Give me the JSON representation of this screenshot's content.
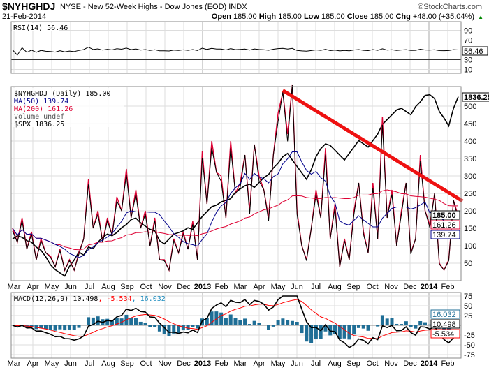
{
  "header": {
    "symbol": "$NYHGHDJ",
    "description": "NYSE - New 52-Week Highs - Dow Jones (EOD) INDX",
    "watermark": "©StockCharts.com",
    "date": "21-Feb-2014",
    "open_label": "Open",
    "open": "185.00",
    "high_label": "High",
    "high": "185.00",
    "low_label": "Low",
    "low": "185.00",
    "close_label": "Close",
    "close": "185.00",
    "chg_label": "Chg",
    "chg": "+48.00 (+35.04%)",
    "chg_arrow": "▲"
  },
  "colors": {
    "price": "#000000",
    "ma50": "#00008b",
    "ma200": "#dd0033",
    "macd_signal": "#ff0000",
    "macd_hist": "#1f6e96",
    "trendline": "#ee1111",
    "spx": "#000000"
  },
  "chart_data": [
    {
      "type": "line",
      "panel": "RSI",
      "legend": "RSI(14) 56.46",
      "yticks": [
        "90",
        "70",
        "30",
        "10"
      ],
      "ylim": [
        0,
        100
      ],
      "reference_lines": [
        70,
        50,
        30
      ],
      "last_value_tag": "56.46"
    },
    {
      "type": "line",
      "panel": "Price",
      "legend": [
        {
          "label": "$NYHGHDJ (Daily) 185.00",
          "color": "#000000"
        },
        {
          "label": "MA(50) 139.74",
          "color": "#00008b"
        },
        {
          "label": "MA(200) 161.26",
          "color": "#dd0033"
        },
        {
          "label": "Volume undef",
          "color": "#555555"
        },
        {
          "label": "$SPX 1836.25",
          "color": "#000000"
        }
      ],
      "ylim": [
        0,
        540
      ],
      "yticks": [
        "500",
        "450",
        "400",
        "350",
        "300",
        "250",
        "200",
        "150",
        "100",
        "50"
      ],
      "tags": {
        "spx": "1836.25",
        "close": "185.00",
        "ma200": "161.26",
        "ma50": "139.74"
      },
      "series_nyhghdj": [
        150,
        110,
        180,
        90,
        140,
        60,
        120,
        80,
        70,
        40,
        90,
        30,
        60,
        30,
        80,
        120,
        290,
        150,
        200,
        110,
        180,
        130,
        240,
        200,
        320,
        180,
        260,
        150,
        200,
        100,
        180,
        60,
        60,
        30,
        120,
        80,
        140,
        90,
        170,
        60,
        370,
        220,
        400,
        310,
        300,
        180,
        400,
        250,
        280,
        360,
        200,
        390,
        300,
        260,
        180,
        360,
        480,
        540,
        420,
        560,
        200,
        100,
        60,
        150,
        260,
        180,
        380,
        120,
        220,
        40,
        120,
        60,
        200,
        280,
        140,
        80,
        280,
        120,
        470,
        180,
        260,
        100,
        200,
        280,
        80,
        120,
        360,
        200,
        160,
        250,
        50,
        30,
        60,
        230,
        185
      ],
      "series_spx": [
        1395,
        1405,
        1400,
        1390,
        1385,
        1370,
        1360,
        1340,
        1315,
        1300,
        1290,
        1280,
        1310,
        1330,
        1355,
        1345,
        1370,
        1365,
        1385,
        1400,
        1410,
        1405,
        1415,
        1430,
        1440,
        1455,
        1460,
        1445,
        1435,
        1425,
        1420,
        1390,
        1380,
        1395,
        1410,
        1415,
        1420,
        1430,
        1425,
        1445,
        1465,
        1480,
        1495,
        1500,
        1510,
        1515,
        1520,
        1540,
        1550,
        1560,
        1565,
        1555,
        1570,
        1585,
        1595,
        1615,
        1630,
        1650,
        1660,
        1640,
        1620,
        1600,
        1580,
        1610,
        1650,
        1675,
        1690,
        1685,
        1670,
        1655,
        1640,
        1660,
        1680,
        1700,
        1690,
        1680,
        1700,
        1720,
        1750,
        1765,
        1780,
        1795,
        1800,
        1790,
        1780,
        1805,
        1820,
        1840,
        1842,
        1830,
        1790,
        1770,
        1745,
        1800,
        1836
      ],
      "spx_range": [
        1266,
        1850
      ],
      "annotation": {
        "type": "trendline",
        "from": {
          "index": 57,
          "value": 545
        },
        "to": {
          "index": 94,
          "value": 228
        }
      }
    },
    {
      "type": "bar+line",
      "panel": "MACD",
      "legend": "MACD(12,26,9)",
      "legend_values": {
        "macd": "10.498",
        "signal": "-5.534",
        "histogram": "16.032"
      },
      "ylim": [
        -80,
        80
      ],
      "yticks": [
        "75",
        "50",
        "25",
        "-25",
        "-50",
        "-75"
      ],
      "tags": {
        "macd": "10.498",
        "signal": "-5.534",
        "histogram": "16.032"
      }
    }
  ],
  "x_axis": {
    "months": [
      "Mar",
      "Apr",
      "May",
      "Jun",
      "Jul",
      "Aug",
      "Sep",
      "Oct",
      "Nov",
      "Dec",
      "2013",
      "Feb",
      "Mar",
      "Apr",
      "May",
      "Jun",
      "Jul",
      "Aug",
      "Sep",
      "Oct",
      "Nov",
      "Dec",
      "2014",
      "Feb"
    ]
  }
}
